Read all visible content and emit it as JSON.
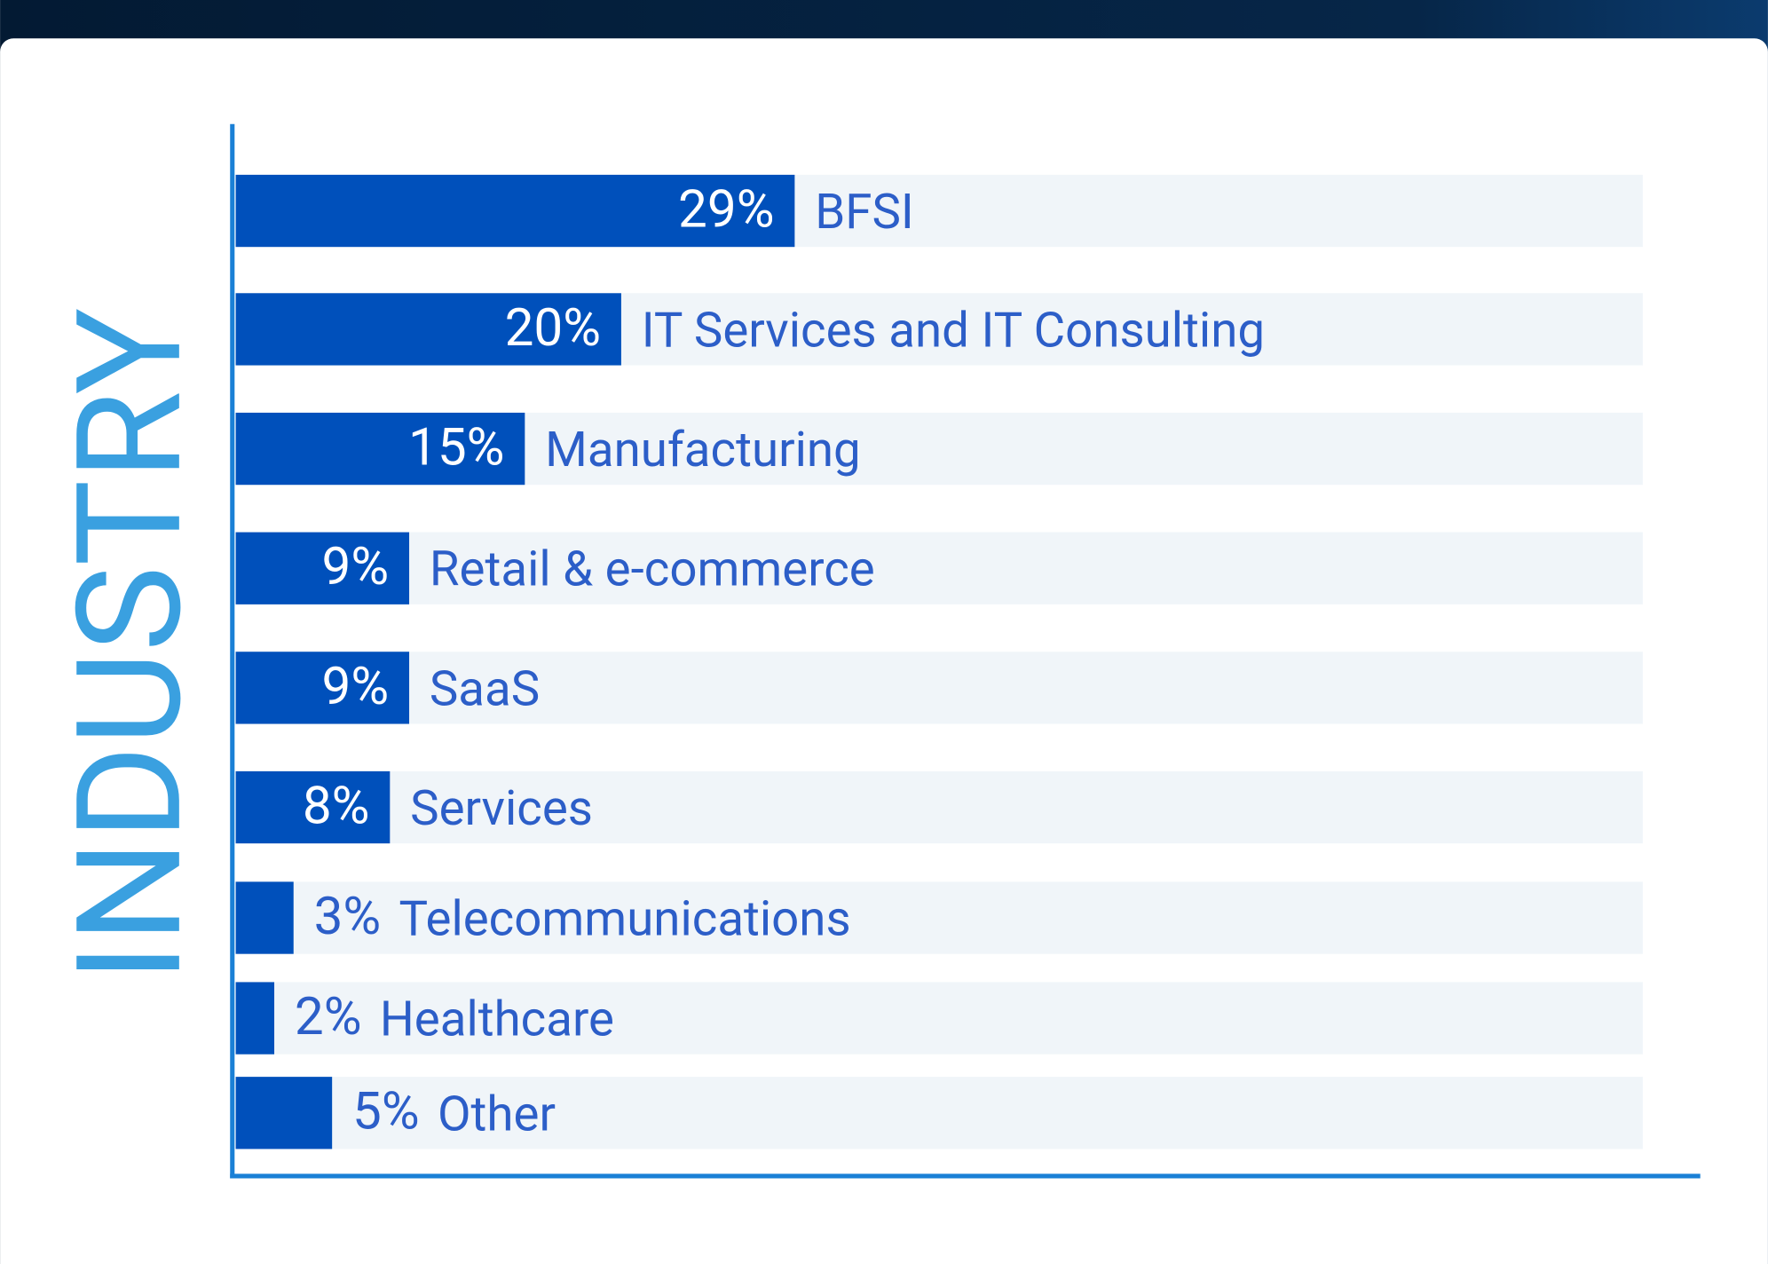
{
  "chart_data": {
    "type": "bar",
    "orientation": "horizontal",
    "axis_label": "INDUSTRY",
    "categories": [
      "BFSI",
      "IT Services and IT Consulting",
      "Manufacturing",
      "Retail & e-commerce",
      "SaaS",
      "Services",
      "Telecommunications",
      "Healthcare",
      "Other"
    ],
    "values": [
      29,
      20,
      15,
      9,
      9,
      8,
      3,
      2,
      5
    ],
    "value_labels": [
      "29%",
      "20%",
      "15%",
      "9%",
      "9%",
      "8%",
      "3%",
      "2%",
      "5%"
    ],
    "color": "#0050bb",
    "xlim": [
      0,
      73
    ]
  }
}
